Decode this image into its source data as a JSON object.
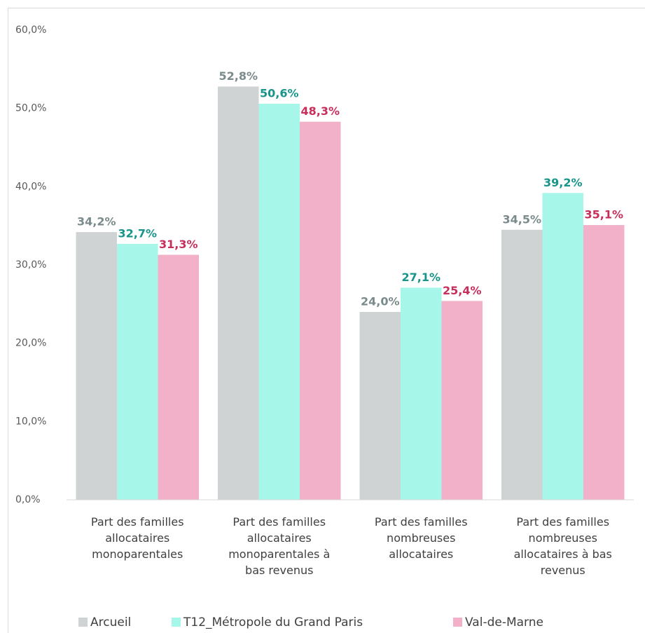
{
  "chart_data": {
    "type": "bar",
    "categories": [
      "Part des familles allocataires monoparentales",
      "Part des familles allocataires monoparentales à bas revenus",
      "Part des familles nombreuses allocataires",
      "Part des familles nombreuses allocataires à bas revenus"
    ],
    "series": [
      {
        "name": "Arcueil",
        "color": "#d0d3d4",
        "label_color": "#7b8a8b",
        "values": [
          34.2,
          52.8,
          24.0,
          34.5
        ],
        "value_labels": [
          "34,2%",
          "52,8%",
          "24,0%",
          "34,5%"
        ]
      },
      {
        "name": "T12_Métropole du Grand Paris",
        "color": "#a6f6ea",
        "label_color": "#17958a",
        "values": [
          32.7,
          50.6,
          27.1,
          39.2
        ],
        "value_labels": [
          "32,7%",
          "50,6%",
          "27,1%",
          "39,2%"
        ]
      },
      {
        "name": "Val-de-Marne",
        "color": "#f2b1c8",
        "label_color": "#c62f5c",
        "values": [
          31.3,
          48.3,
          25.4,
          35.1
        ],
        "value_labels": [
          "31,3%",
          "48,3%",
          "25,4%",
          "35,1%"
        ]
      }
    ],
    "ylim": [
      0,
      60
    ],
    "yticks": [
      {
        "value": 0,
        "label": "0,0%"
      },
      {
        "value": 10,
        "label": "10,0%"
      },
      {
        "value": 20,
        "label": "20,0%"
      },
      {
        "value": 30,
        "label": "30,0%"
      },
      {
        "value": 40,
        "label": "40,0%"
      },
      {
        "value": 50,
        "label": "50,0%"
      },
      {
        "value": 60,
        "label": "60,0%"
      }
    ],
    "grid": false,
    "legend": "bottom"
  }
}
